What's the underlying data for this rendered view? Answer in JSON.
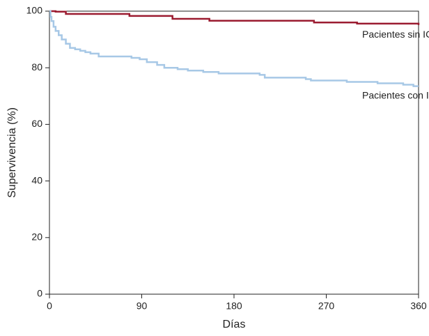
{
  "chart_data": {
    "type": "step",
    "x_label": "Días",
    "y_label": "Supervivencia (%)",
    "xlim": [
      0,
      360
    ],
    "ylim": [
      0,
      100
    ],
    "xticks": [
      0,
      90,
      180,
      270,
      360
    ],
    "yticks": [
      0,
      20,
      40,
      60,
      80,
      100
    ],
    "series": [
      {
        "name": "Pacientes sin ICC",
        "color": "#9b1b30",
        "x": [
          0,
          6,
          16,
          78,
          120,
          156,
          258,
          300,
          360
        ],
        "values": [
          100,
          99.8,
          99,
          98.3,
          97.3,
          96.6,
          96,
          95.6,
          95.1
        ]
      },
      {
        "name": "Pacientes con ICC",
        "color": "#a7c8e6",
        "x": [
          0,
          1,
          2,
          4,
          6,
          9,
          12,
          16,
          20,
          25,
          30,
          35,
          40,
          48,
          80,
          88,
          95,
          105,
          112,
          125,
          135,
          150,
          165,
          205,
          210,
          250,
          255,
          290,
          320,
          345,
          355,
          360
        ],
        "values": [
          100,
          98,
          96.5,
          94.5,
          93,
          91.5,
          90,
          88.5,
          87,
          86.5,
          86,
          85.5,
          85,
          84,
          83.5,
          83,
          82,
          81,
          80,
          79.5,
          79,
          78.5,
          78,
          77.5,
          76.5,
          76,
          75.5,
          75,
          74.5,
          74,
          73.5,
          73.5
        ]
      }
    ],
    "annotations": [
      {
        "text": "Pacientes sin ICC",
        "x": 305,
        "y": 91.5
      },
      {
        "text": "Pacientes con ICC",
        "x": 305,
        "y": 70
      }
    ]
  }
}
